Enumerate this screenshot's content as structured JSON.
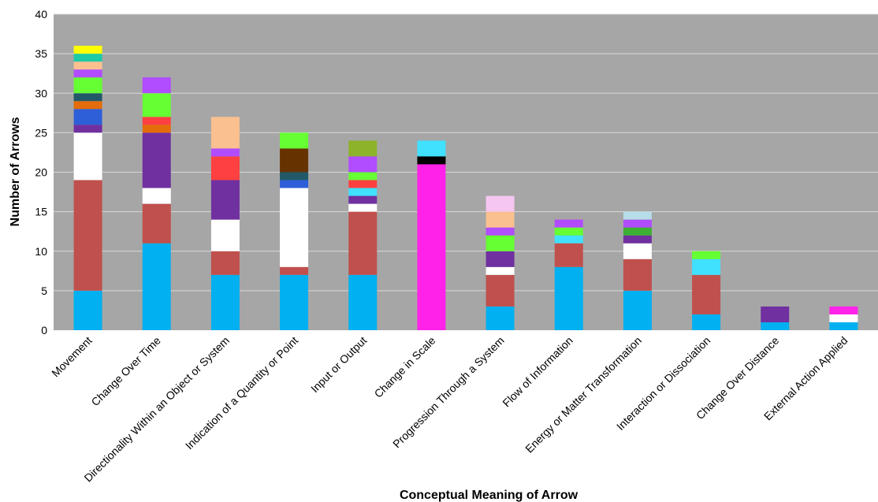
{
  "chart_data": {
    "type": "bar",
    "stacked": true,
    "title": "",
    "xlabel": "Conceptual Meaning of Arrow",
    "ylabel": "Number of Arrows",
    "ylim": [
      0,
      40
    ],
    "yticks": [
      0,
      5,
      10,
      15,
      20,
      25,
      30,
      35,
      40
    ],
    "grid": true,
    "legend": "none",
    "plot_background": "#a6a6a6",
    "gridline_color": "#d9d9d9",
    "categories": [
      "Movement",
      "Change Over Time",
      "Directionality Within an Object or System",
      "Indication of a Quantity or Point",
      "Input or Output",
      "Change in Scale",
      "Progression Through a System",
      "Flow of Information",
      "Energy or Matter Transformation",
      "Interaction or Dissociation",
      "Change Over Distance",
      "External Action Applied"
    ],
    "stacks": [
      [
        {
          "value": 5,
          "color": "#00b0f0"
        },
        {
          "value": 14,
          "color": "#c0504d"
        },
        {
          "value": 6,
          "color": "#ffffff"
        },
        {
          "value": 1,
          "color": "#7030a0"
        },
        {
          "value": 2,
          "color": "#2e5fd9"
        },
        {
          "value": 1,
          "color": "#e46c0a"
        },
        {
          "value": 1,
          "color": "#215968"
        },
        {
          "value": 2,
          "color": "#66ff33"
        },
        {
          "value": 1,
          "color": "#b14cff"
        },
        {
          "value": 1,
          "color": "#fac090"
        },
        {
          "value": 1,
          "color": "#1ccaa6"
        },
        {
          "value": 1,
          "color": "#ffff00"
        }
      ],
      [
        {
          "value": 11,
          "color": "#00b0f0"
        },
        {
          "value": 5,
          "color": "#c0504d"
        },
        {
          "value": 2,
          "color": "#ffffff"
        },
        {
          "value": 7,
          "color": "#7030a0"
        },
        {
          "value": 1,
          "color": "#e46c0a"
        },
        {
          "value": 1,
          "color": "#ff4040"
        },
        {
          "value": 3,
          "color": "#66ff33"
        },
        {
          "value": 2,
          "color": "#b14cff"
        }
      ],
      [
        {
          "value": 7,
          "color": "#00b0f0"
        },
        {
          "value": 3,
          "color": "#c0504d"
        },
        {
          "value": 4,
          "color": "#ffffff"
        },
        {
          "value": 5,
          "color": "#7030a0"
        },
        {
          "value": 3,
          "color": "#ff4040"
        },
        {
          "value": 1,
          "color": "#b14cff"
        },
        {
          "value": 4,
          "color": "#fac090"
        }
      ],
      [
        {
          "value": 7,
          "color": "#00b0f0"
        },
        {
          "value": 1,
          "color": "#c0504d"
        },
        {
          "value": 10,
          "color": "#ffffff"
        },
        {
          "value": 1,
          "color": "#2e5fd9"
        },
        {
          "value": 1,
          "color": "#215968"
        },
        {
          "value": 3,
          "color": "#663300"
        },
        {
          "value": 2,
          "color": "#66ff33"
        }
      ],
      [
        {
          "value": 7,
          "color": "#00b0f0"
        },
        {
          "value": 8,
          "color": "#c0504d"
        },
        {
          "value": 1,
          "color": "#ffffff"
        },
        {
          "value": 1,
          "color": "#7030a0"
        },
        {
          "value": 1,
          "color": "#40e0ff"
        },
        {
          "value": 1,
          "color": "#ff4040"
        },
        {
          "value": 1,
          "color": "#66ff33"
        },
        {
          "value": 2,
          "color": "#b14cff"
        },
        {
          "value": 2,
          "color": "#8db32b"
        }
      ],
      [
        {
          "value": 21,
          "color": "#ff22e8"
        },
        {
          "value": 1,
          "color": "#000000"
        },
        {
          "value": 2,
          "color": "#40e0ff"
        }
      ],
      [
        {
          "value": 3,
          "color": "#00b0f0"
        },
        {
          "value": 4,
          "color": "#c0504d"
        },
        {
          "value": 1,
          "color": "#ffffff"
        },
        {
          "value": 2,
          "color": "#7030a0"
        },
        {
          "value": 2,
          "color": "#66ff33"
        },
        {
          "value": 1,
          "color": "#b14cff"
        },
        {
          "value": 2,
          "color": "#fac090"
        },
        {
          "value": 2,
          "color": "#f5c6f0"
        }
      ],
      [
        {
          "value": 8,
          "color": "#00b0f0"
        },
        {
          "value": 3,
          "color": "#c0504d"
        },
        {
          "value": 1,
          "color": "#40e0ff"
        },
        {
          "value": 1,
          "color": "#66ff33"
        },
        {
          "value": 1,
          "color": "#b14cff"
        }
      ],
      [
        {
          "value": 5,
          "color": "#00b0f0"
        },
        {
          "value": 4,
          "color": "#c0504d"
        },
        {
          "value": 2,
          "color": "#ffffff"
        },
        {
          "value": 1,
          "color": "#7030a0"
        },
        {
          "value": 1,
          "color": "#3cb034"
        },
        {
          "value": 1,
          "color": "#b14cff"
        },
        {
          "value": 1,
          "color": "#b7dde8"
        }
      ],
      [
        {
          "value": 2,
          "color": "#00b0f0"
        },
        {
          "value": 5,
          "color": "#c0504d"
        },
        {
          "value": 2,
          "color": "#40e0ff"
        },
        {
          "value": 1,
          "color": "#66ff33"
        }
      ],
      [
        {
          "value": 1,
          "color": "#00b0f0"
        },
        {
          "value": 2,
          "color": "#7030a0"
        }
      ],
      [
        {
          "value": 1,
          "color": "#00b0f0"
        },
        {
          "value": 1,
          "color": "#ffffff"
        },
        {
          "value": 1,
          "color": "#ff22e8"
        }
      ]
    ]
  }
}
